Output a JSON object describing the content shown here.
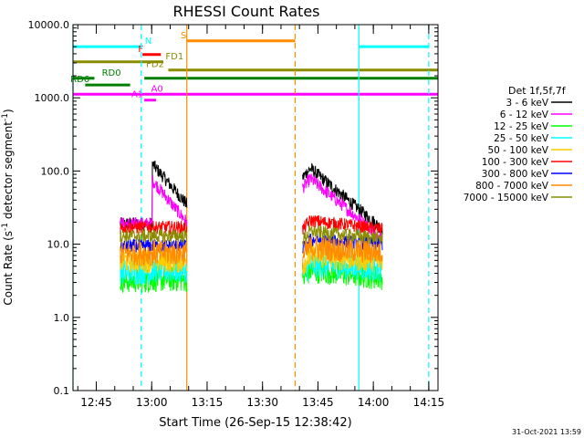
{
  "chart_data": {
    "type": "line",
    "title": "RHESSI Count Rates",
    "xlabel": "Start Time (26-Sep-15 12:38:42)",
    "ylabel_main": "Count Rate (s",
    "ylabel_sup1": "-1",
    "ylabel_mid": " detector segment",
    "ylabel_sup2": "-1",
    "ylabel_end": ")",
    "y_scale": "log",
    "ylim": [
      0.1,
      10000
    ],
    "xlim": [
      "12:38:42",
      "14:17:30"
    ],
    "xticks": [
      {
        "t": "12:45",
        "label": "12:45"
      },
      {
        "t": "13:00",
        "label": "13:00"
      },
      {
        "t": "13:15",
        "label": "13:15"
      },
      {
        "t": "13:30",
        "label": "13:30"
      },
      {
        "t": "13:45",
        "label": "13:45"
      },
      {
        "t": "14:00",
        "label": "14:00"
      },
      {
        "t": "14:15",
        "label": "14:15"
      }
    ],
    "yticks": [
      {
        "v": 10000,
        "label": "10000.0"
      },
      {
        "v": 1000,
        "label": "1000.0"
      },
      {
        "v": 100,
        "label": "100.0"
      },
      {
        "v": 10,
        "label": "10.0"
      },
      {
        "v": 1,
        "label": "1.0"
      },
      {
        "v": 0.1,
        "label": "0.1"
      }
    ],
    "legend_title": "Det 1f,5f,7f",
    "legend_placement": "right",
    "series": [
      {
        "name": "3 - 6 keV",
        "color": "#000000",
        "pre": 19,
        "hi": 125,
        "late": 35,
        "post": 108,
        "post_end": 16
      },
      {
        "name": "6 - 12 keV",
        "color": "#ff00ff",
        "pre": 19,
        "hi": 75,
        "late": 20,
        "post": 78,
        "post_end": 12
      },
      {
        "name": "12 - 25 keV",
        "color": "#00ff00",
        "pre": 3.2,
        "hi": 3.3,
        "late": 3.3,
        "post": 4.4,
        "post_end": 3.5
      },
      {
        "name": "25 - 50 keV",
        "color": "#00ffff",
        "pre": 4.2,
        "hi": 4.4,
        "late": 4.4,
        "post": 5.2,
        "post_end": 4.6
      },
      {
        "name": "50 - 100 keV",
        "color": "#ffcc00",
        "pre": 6,
        "hi": 6,
        "late": 6,
        "post": 7,
        "post_end": 6
      },
      {
        "name": "100 - 300 keV",
        "color": "#ff0000",
        "pre": 17,
        "hi": 17,
        "late": 17,
        "post": 21,
        "post_end": 16
      },
      {
        "name": "300 - 800 keV",
        "color": "#0000ff",
        "pre": 9.5,
        "hi": 9.5,
        "late": 9.5,
        "post": 11.5,
        "post_end": 10
      },
      {
        "name": "800 - 7000 keV",
        "color": "#ff8c00",
        "pre": 7.5,
        "hi": 7.6,
        "late": 7.6,
        "post": 9,
        "post_end": 7.8
      },
      {
        "name": "7000 - 15000 keV",
        "color": "#8b8b00",
        "pre": 13,
        "hi": 13,
        "late": 13,
        "post": 15,
        "post_end": 12
      }
    ],
    "segments": [
      {
        "label": "N",
        "label_at": "12:58:10",
        "color": "#00ffff",
        "y": 5000,
        "t0": "12:38:42",
        "t1": "12:57:10"
      },
      {
        "label": "",
        "label_at": "",
        "color": "#00ffff",
        "y": 5000,
        "t0": "13:56:05",
        "t1": "14:15:00"
      },
      {
        "label": "F",
        "label_at": "12:56:20",
        "color": "#ff0000",
        "y": 3900,
        "t0": "12:57:30",
        "t1": "13:02:30"
      },
      {
        "label": "FD1",
        "label_at": "13:03:45",
        "color": "#8b8b00",
        "y": 3100,
        "t0": "12:38:42",
        "t1": "13:03:10"
      },
      {
        "label": "FD2",
        "label_at": "12:58:30",
        "color": "#8b8b00",
        "y": 2400,
        "t0": "13:04:30",
        "t1": "14:17:30"
      },
      {
        "label": "S",
        "label_at": "13:07:50",
        "color": "#ff8c00",
        "y": 6000,
        "t0": "13:09:30",
        "t1": "13:38:50"
      },
      {
        "label": "RD0",
        "label_at": "12:46:30",
        "color": "#008000",
        "y": 1850,
        "t0": "12:38:42",
        "t1": "12:44:30"
      },
      {
        "label": "",
        "label_at": "",
        "color": "#008000",
        "y": 1850,
        "t0": "12:58:00",
        "t1": "14:17:30"
      },
      {
        "label": "RD6",
        "label_at": "12:38:00",
        "color": "#008000",
        "y": 1500,
        "t0": "12:42:00",
        "t1": "12:54:10"
      },
      {
        "label": "A0",
        "label_at": "12:59:50",
        "color": "#ff00ff",
        "y": 1120,
        "t0": "12:38:42",
        "t1": "14:17:30"
      },
      {
        "label": "A1",
        "label_at": "12:54:30",
        "color": "#ff00ff",
        "y": 930,
        "t0": "12:58:00",
        "t1": "13:01:10"
      }
    ],
    "vlines": [
      {
        "t": "12:38:42",
        "color": "#00ffff",
        "style": "solid"
      },
      {
        "t": "12:57:10",
        "color": "#00ffff",
        "style": "dashed"
      },
      {
        "t": "13:09:30",
        "color": "#ff8c00",
        "style": "solid"
      },
      {
        "t": "13:38:50",
        "color": "#ff8c00",
        "style": "dashed"
      },
      {
        "t": "13:56:05",
        "color": "#00ffff",
        "style": "solid"
      },
      {
        "t": "14:15:00",
        "color": "#00ffff",
        "style": "dashed"
      }
    ],
    "data_windows": [
      {
        "t0": "12:51:30",
        "t1": "13:09:30"
      },
      {
        "t0": "13:40:50",
        "t1": "14:02:30"
      }
    ],
    "timestamp": "31-Oct-2021 13:59"
  }
}
